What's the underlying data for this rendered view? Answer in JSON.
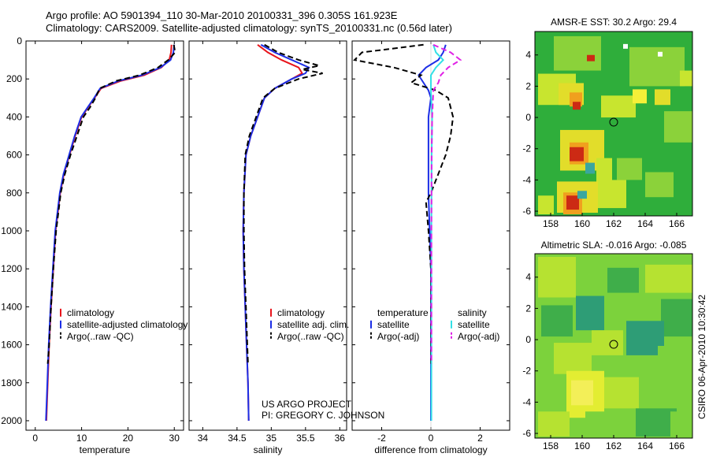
{
  "header": {
    "line1": "Argo profile: AO 5901394_110 30-Mar-2010 20100331_396 0.305S 161.923E",
    "line2": "Climatology: CARS2009. Satellite-adjusted climatology: synTS_20100331.nc (0.56d later)"
  },
  "colors": {
    "red": "#e8141b",
    "blue": "#1c2ee6",
    "black": "#000000",
    "cyan": "#33e0e6",
    "magenta": "#e021e6"
  },
  "project": {
    "line1": "US ARGO PROJECT",
    "line2": "PI: GREGORY C. JOHNSON"
  },
  "timestamp": "CSIRO 06-Apr-2010 10:30:42",
  "chart_data": [
    {
      "type": "line",
      "id": "temperature",
      "xlabel": "temperature",
      "ylabel": "",
      "xlim": [
        -2,
        32
      ],
      "ylim": [
        2050,
        0
      ],
      "xticks": [
        0,
        10,
        20,
        30
      ],
      "yticks": [
        0,
        200,
        400,
        600,
        800,
        1000,
        1200,
        1400,
        1600,
        1800,
        2000
      ],
      "legend": {
        "placement": "lower-right",
        "entries": [
          "climatology",
          "satellite-adjusted climatology",
          "Argo(..raw -QC)"
        ]
      },
      "series": [
        {
          "name": "climatology",
          "color": "red",
          "dash": false,
          "points": [
            [
              29.4,
              20
            ],
            [
              29.3,
              60
            ],
            [
              28.9,
              100
            ],
            [
              27.2,
              140
            ],
            [
              23.5,
              180
            ],
            [
              18.5,
              210
            ],
            [
              14.2,
              250
            ],
            [
              12.8,
              300
            ],
            [
              11.4,
              350
            ],
            [
              10.0,
              400
            ],
            [
              8.6,
              500
            ],
            [
              7.4,
              600
            ],
            [
              6.2,
              700
            ],
            [
              5.4,
              800
            ],
            [
              4.9,
              900
            ],
            [
              4.4,
              1000
            ],
            [
              3.9,
              1200
            ],
            [
              3.4,
              1400
            ],
            [
              3.0,
              1600
            ],
            [
              2.7,
              1800
            ],
            [
              2.4,
              2000
            ]
          ]
        },
        {
          "name": "satellite-adjusted climatology",
          "color": "blue",
          "dash": false,
          "points": [
            [
              30.0,
              20
            ],
            [
              29.8,
              60
            ],
            [
              29.2,
              100
            ],
            [
              27.0,
              140
            ],
            [
              23.0,
              180
            ],
            [
              18.0,
              210
            ],
            [
              14.0,
              250
            ],
            [
              12.7,
              300
            ],
            [
              11.3,
              350
            ],
            [
              9.9,
              400
            ],
            [
              8.5,
              500
            ],
            [
              7.3,
              600
            ],
            [
              6.1,
              700
            ],
            [
              5.3,
              800
            ],
            [
              4.8,
              900
            ],
            [
              4.3,
              1000
            ],
            [
              3.8,
              1200
            ],
            [
              3.3,
              1400
            ],
            [
              2.9,
              1600
            ],
            [
              2.6,
              1800
            ],
            [
              2.3,
              2000
            ]
          ]
        },
        {
          "name": "Argo(..raw -QC)",
          "color": "black",
          "dash": true,
          "points": [
            [
              29.9,
              20
            ],
            [
              30.2,
              60
            ],
            [
              28.7,
              100
            ],
            [
              26.5,
              140
            ],
            [
              22.5,
              180
            ],
            [
              17.5,
              210
            ],
            [
              13.9,
              250
            ],
            [
              13.0,
              300
            ],
            [
              11.8,
              350
            ],
            [
              10.4,
              400
            ],
            [
              9.0,
              500
            ],
            [
              7.6,
              600
            ],
            [
              6.4,
              700
            ],
            [
              5.5,
              800
            ],
            [
              5.0,
              900
            ],
            [
              4.5,
              1000
            ],
            [
              3.9,
              1200
            ],
            [
              3.4,
              1400
            ],
            [
              3.0,
              1600
            ],
            [
              2.7,
              1700
            ]
          ]
        }
      ]
    },
    {
      "type": "line",
      "id": "salinity",
      "xlabel": "salinity",
      "ylabel": "",
      "xlim": [
        33.8,
        36.1
      ],
      "ylim": [
        2050,
        0
      ],
      "xticks": [
        34,
        34.5,
        35,
        35.5,
        36
      ],
      "legend": {
        "placement": "lower-right",
        "entries": [
          "climatology",
          "satellite adj. clim.",
          "Argo(..raw -QC)"
        ]
      },
      "series": [
        {
          "name": "climatology",
          "color": "red",
          "dash": false,
          "points": [
            [
              34.8,
              20
            ],
            [
              34.95,
              60
            ],
            [
              35.15,
              100
            ],
            [
              35.4,
              140
            ],
            [
              35.45,
              170
            ],
            [
              35.3,
              200
            ],
            [
              35.05,
              250
            ],
            [
              34.9,
              300
            ],
            [
              34.8,
              400
            ],
            [
              34.7,
              500
            ],
            [
              34.63,
              600
            ],
            [
              34.6,
              800
            ],
            [
              34.59,
              1000
            ],
            [
              34.6,
              1200
            ],
            [
              34.62,
              1400
            ],
            [
              34.64,
              1600
            ],
            [
              34.66,
              1800
            ],
            [
              34.67,
              2000
            ]
          ]
        },
        {
          "name": "satellite adj. clim.",
          "color": "blue",
          "dash": false,
          "points": [
            [
              34.85,
              20
            ],
            [
              35.05,
              60
            ],
            [
              35.3,
              100
            ],
            [
              35.55,
              140
            ],
            [
              35.5,
              170
            ],
            [
              35.3,
              200
            ],
            [
              35.05,
              250
            ],
            [
              34.9,
              300
            ],
            [
              34.8,
              400
            ],
            [
              34.7,
              500
            ],
            [
              34.63,
              600
            ],
            [
              34.6,
              800
            ],
            [
              34.59,
              1000
            ],
            [
              34.6,
              1200
            ],
            [
              34.62,
              1400
            ],
            [
              34.64,
              1600
            ],
            [
              34.66,
              1800
            ],
            [
              34.67,
              2000
            ]
          ]
        },
        {
          "name": "Argo(..raw -QC)",
          "color": "black",
          "dash": true,
          "points": [
            [
              34.9,
              20
            ],
            [
              35.1,
              60
            ],
            [
              35.4,
              100
            ],
            [
              35.7,
              130
            ],
            [
              35.45,
              150
            ],
            [
              35.75,
              170
            ],
            [
              35.4,
              200
            ],
            [
              35.05,
              250
            ],
            [
              34.88,
              300
            ],
            [
              34.78,
              400
            ],
            [
              34.68,
              500
            ],
            [
              34.62,
              600
            ],
            [
              34.6,
              800
            ],
            [
              34.6,
              1000
            ],
            [
              34.61,
              1200
            ],
            [
              34.63,
              1400
            ],
            [
              34.65,
              1600
            ],
            [
              34.66,
              1700
            ]
          ]
        }
      ]
    },
    {
      "type": "line",
      "id": "difference",
      "xlabel": "difference from climatology",
      "ylabel": "",
      "xlim": [
        -3.2,
        3.2
      ],
      "ylim": [
        2050,
        0
      ],
      "xticks": [
        -2,
        0,
        2
      ],
      "legend": {
        "placement": "lower-center",
        "entries": [
          "temperature",
          "satellite",
          "Argo(-adj)",
          "salinity",
          "satellite",
          "Argo(-adj)"
        ]
      },
      "series": [
        {
          "name": "temperature satellite",
          "color": "blue",
          "dash": false,
          "points": [
            [
              0.6,
              20
            ],
            [
              0.5,
              60
            ],
            [
              0.3,
              100
            ],
            [
              -0.2,
              140
            ],
            [
              -0.5,
              180
            ],
            [
              -0.3,
              220
            ],
            [
              -0.1,
              260
            ],
            [
              0.0,
              300
            ],
            [
              -0.1,
              400
            ],
            [
              -0.1,
              600
            ],
            [
              -0.1,
              800
            ],
            [
              -0.05,
              1000
            ],
            [
              0,
              1200
            ],
            [
              0,
              1600
            ],
            [
              0,
              2000
            ]
          ]
        },
        {
          "name": "temperature Argo(-adj)",
          "color": "black",
          "dash": true,
          "points": [
            [
              -0.3,
              20
            ],
            [
              -2.8,
              60
            ],
            [
              -3.1,
              100
            ],
            [
              -1.5,
              140
            ],
            [
              -0.4,
              180
            ],
            [
              -0.8,
              220
            ],
            [
              0.2,
              260
            ],
            [
              0.7,
              300
            ],
            [
              0.9,
              400
            ],
            [
              0.8,
              500
            ],
            [
              0.6,
              600
            ],
            [
              0.3,
              700
            ],
            [
              0.0,
              800
            ],
            [
              -0.2,
              850
            ],
            [
              -0.1,
              1000
            ],
            [
              0,
              1200
            ],
            [
              0,
              1700
            ]
          ]
        },
        {
          "name": "salinity satellite",
          "color": "cyan",
          "dash": false,
          "points": [
            [
              0.1,
              20
            ],
            [
              0.2,
              60
            ],
            [
              0.5,
              100
            ],
            [
              0.2,
              140
            ],
            [
              0.0,
              180
            ],
            [
              0.0,
              260
            ],
            [
              0.05,
              400
            ],
            [
              0.03,
              600
            ],
            [
              0.02,
              1000
            ],
            [
              0.02,
              1400
            ],
            [
              0.02,
              2000
            ]
          ]
        },
        {
          "name": "salinity Argo(-adj)",
          "color": "magenta",
          "dash": true,
          "points": [
            [
              0.1,
              20
            ],
            [
              0.8,
              60
            ],
            [
              1.2,
              100
            ],
            [
              0.7,
              140
            ],
            [
              0.4,
              180
            ],
            [
              0.3,
              220
            ],
            [
              0.1,
              260
            ],
            [
              0.05,
              400
            ],
            [
              0.03,
              600
            ],
            [
              0.02,
              1000
            ],
            [
              0.02,
              1400
            ],
            [
              0.02,
              1700
            ]
          ]
        }
      ]
    },
    {
      "type": "heatmap",
      "id": "sst",
      "title": "AMSR-E SST: 30.2 Argo: 29.4",
      "xlim": [
        157,
        167
      ],
      "ylim": [
        -6.3,
        5.5
      ],
      "xticks": [
        158,
        160,
        162,
        164,
        166
      ],
      "yticks": [
        -6,
        -4,
        -2,
        0,
        2,
        4
      ],
      "marker": [
        162,
        -0.3
      ]
    },
    {
      "type": "heatmap",
      "id": "sla",
      "title": "Altimetric SLA: -0.016 Argo: -0.085",
      "xlim": [
        157,
        167
      ],
      "ylim": [
        -6.3,
        5.5
      ],
      "xticks": [
        158,
        160,
        162,
        164,
        166
      ],
      "yticks": [
        -6,
        -4,
        -2,
        0,
        2,
        4
      ],
      "marker": [
        162,
        -0.3
      ]
    }
  ]
}
